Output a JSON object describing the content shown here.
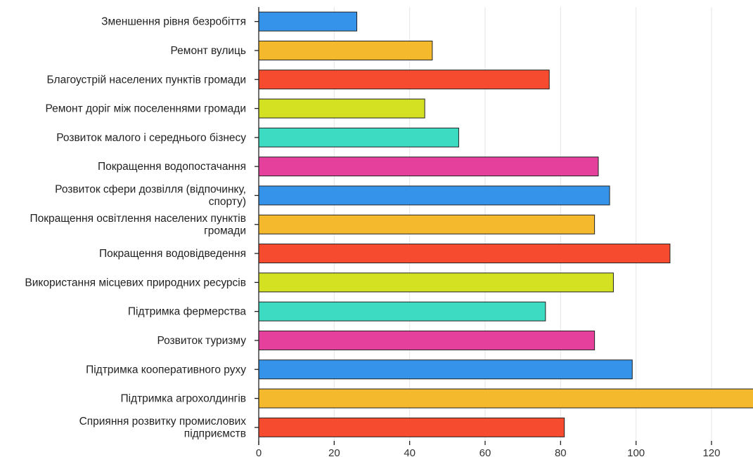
{
  "chart_data": {
    "type": "bar",
    "orientation": "horizontal",
    "title": "",
    "xlabel": "",
    "ylabel": "",
    "xlim": [
      0,
      131
    ],
    "x_ticks": [
      "0",
      "20",
      "40",
      "60",
      "80",
      "100",
      "120"
    ],
    "grid": true,
    "legend": "none",
    "categories": [
      [
        "Зменшення рівня безробіття"
      ],
      [
        "Ремонт вулиць"
      ],
      [
        "Благоустрій населених пунктів громади"
      ],
      [
        "Ремонт доріг між поселеннями громади"
      ],
      [
        "Розвиток малого і середнього бізнесу"
      ],
      [
        "Покращення водопостачання"
      ],
      [
        "Розвиток сфери дозвілля (відпочинку,",
        "спорту)"
      ],
      [
        "Покращення освітлення населених пунктів",
        "громади"
      ],
      [
        "Покращення водовідведення"
      ],
      [
        "Використання місцевих природних ресурсів"
      ],
      [
        "Підтримка фермерства"
      ],
      [
        "Розвиток туризму"
      ],
      [
        "Підтримка кооперативного руху"
      ],
      [
        "Підтримка агрохолдингів"
      ],
      [
        "Сприяння розвитку промислових",
        "підприємств"
      ]
    ],
    "values": [
      26,
      46,
      77,
      44,
      53,
      90,
      93,
      89,
      109,
      94,
      76,
      89,
      99,
      135,
      81
    ],
    "colors": [
      "#3594ea",
      "#f5b92e",
      "#f64b2e",
      "#d4e022",
      "#3ddcc2",
      "#e4409c",
      "#3594ea",
      "#f5b92e",
      "#f64b2e",
      "#d4e022",
      "#3ddcc2",
      "#e4409c",
      "#3594ea",
      "#f5b92e",
      "#f64b2e"
    ]
  }
}
